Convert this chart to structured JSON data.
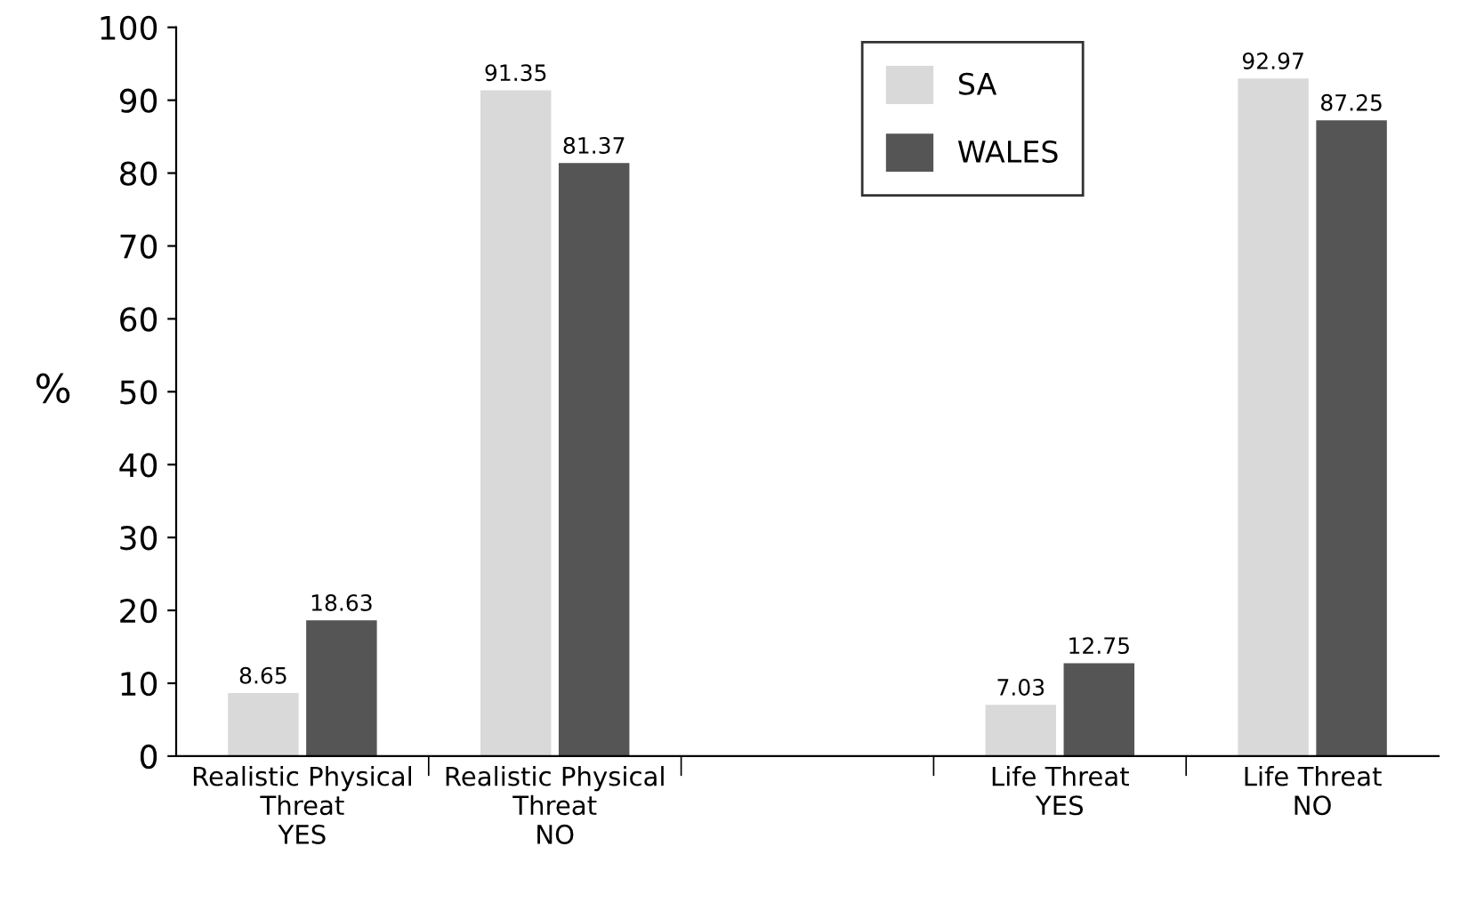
{
  "chart_data": {
    "type": "bar",
    "ylabel": "%",
    "categories": [
      "Realistic Physical\nThreat\nYES",
      "Realistic Physical\nThreat\nNO",
      null,
      "Life Threat\nYES",
      "Life Threat\nNO"
    ],
    "series": [
      {
        "name": "SA",
        "color": "#d9d9d9",
        "values": [
          8.65,
          91.35,
          null,
          7.03,
          92.97
        ]
      },
      {
        "name": "WALES",
        "color": "#555555",
        "values": [
          18.63,
          81.37,
          null,
          12.75,
          87.25
        ]
      }
    ],
    "ylim": [
      0,
      100
    ],
    "yticks": [
      0,
      10,
      20,
      30,
      40,
      50,
      60,
      70,
      80,
      90,
      100
    ],
    "grid": false,
    "legend": "top right",
    "data_labels": true
  }
}
